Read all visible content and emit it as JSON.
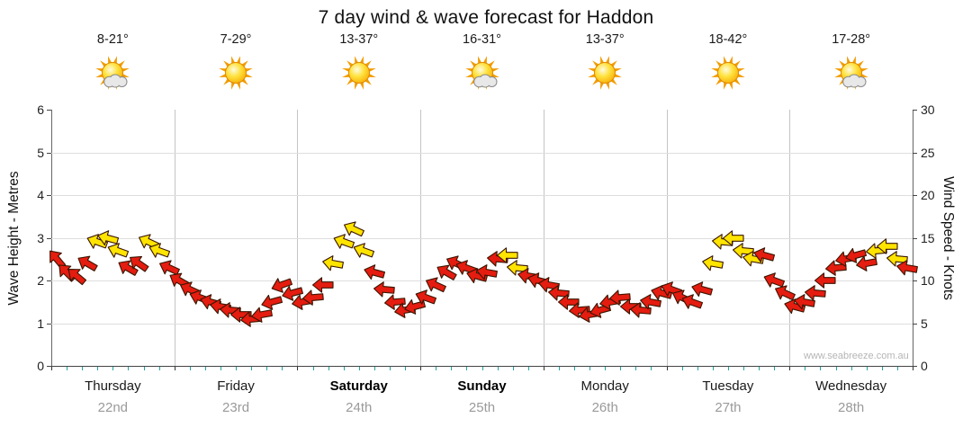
{
  "title": "7 day wind & wave forecast for Haddon",
  "watermark": "www.seabreeze.com.au",
  "axes": {
    "left_label": "Wave Height - Metres",
    "right_label": "Wind Speed - Knots",
    "wave_ticks": [
      0,
      1,
      2,
      3,
      4,
      5,
      6
    ],
    "wind_ticks": [
      0,
      5,
      10,
      15,
      20,
      25,
      30
    ],
    "wave_range": [
      0,
      6
    ],
    "wind_range": [
      0,
      30
    ]
  },
  "days": [
    {
      "name": "Thursday",
      "date": "22nd",
      "temp": "8-21°",
      "icon": "sun-cloud-icon",
      "weekend": false
    },
    {
      "name": "Friday",
      "date": "23rd",
      "temp": "7-29°",
      "icon": "sun-icon",
      "weekend": false
    },
    {
      "name": "Saturday",
      "date": "24th",
      "temp": "13-37°",
      "icon": "sun-icon",
      "weekend": true
    },
    {
      "name": "Sunday",
      "date": "25th",
      "temp": "16-31°",
      "icon": "sun-cloud-icon",
      "weekend": true
    },
    {
      "name": "Monday",
      "date": "26th",
      "temp": "13-37°",
      "icon": "sun-icon",
      "weekend": false
    },
    {
      "name": "Tuesday",
      "date": "27th",
      "temp": "18-42°",
      "icon": "sun-icon",
      "weekend": false
    },
    {
      "name": "Wednesday",
      "date": "28th",
      "temp": "17-28°",
      "icon": "sun-cloud-icon",
      "weekend": false
    }
  ],
  "chart_data": {
    "type": "scatter",
    "title": "7 day wind & wave forecast for Haddon",
    "ylabel_left": "Wave Height - Metres",
    "ylabel_right": "Wind Speed - Knots",
    "wind_ylim": [
      0,
      30
    ],
    "wave_ylim": [
      0,
      6
    ],
    "grid": true,
    "legend": null,
    "categories": [
      "Thursday 22nd",
      "Friday 23rd",
      "Saturday 24th",
      "Sunday 25th",
      "Monday 26th",
      "Tuesday 27th",
      "Wednesday 28th"
    ],
    "points_per_day": 12,
    "units": "knots",
    "color_map": {
      "r": "#e51c10",
      "y": "#ffe400"
    },
    "series": [
      {
        "name": "Wind speed arrows (direction-rotated glyphs)",
        "knots": [
          12.5,
          11,
          10.5,
          12,
          14.5,
          15,
          13.5,
          11.5,
          12,
          14.5,
          13.5,
          11.5,
          10,
          9,
          8,
          7.5,
          7,
          6.5,
          6,
          5.5,
          6,
          7.5,
          9.5,
          8.5,
          7.5,
          8,
          9.5,
          12,
          14.5,
          16,
          13.5,
          11,
          9,
          7.5,
          6.5,
          7,
          8,
          9.5,
          11,
          12,
          11.5,
          10.5,
          11,
          12.5,
          13,
          11.5,
          10.5,
          10,
          9.5,
          8.5,
          7.5,
          6.5,
          6,
          6.5,
          7.5,
          8,
          7,
          6.5,
          7.5,
          8.5,
          9,
          8,
          7.5,
          9,
          12,
          14.5,
          15,
          13.5,
          12.5,
          13,
          10,
          8.5,
          7,
          7.5,
          8.5,
          10,
          11.5,
          12.5,
          13,
          12,
          13.5,
          14,
          12.5,
          11.5
        ],
        "dir_deg": [
          230,
          225,
          220,
          210,
          200,
          195,
          200,
          210,
          215,
          205,
          200,
          205,
          210,
          205,
          200,
          195,
          190,
          185,
          180,
          175,
          170,
          165,
          160,
          165,
          170,
          175,
          180,
          190,
          200,
          205,
          200,
          195,
          185,
          175,
          170,
          165,
          200,
          205,
          210,
          205,
          200,
          195,
          190,
          185,
          180,
          185,
          190,
          195,
          190,
          185,
          180,
          175,
          170,
          165,
          170,
          175,
          180,
          185,
          190,
          195,
          200,
          205,
          200,
          195,
          190,
          185,
          180,
          185,
          190,
          195,
          200,
          205,
          195,
          190,
          185,
          180,
          175,
          170,
          165,
          170,
          175,
          180,
          185,
          190
        ],
        "colors": [
          "r",
          "r",
          "r",
          "r",
          "y",
          "y",
          "y",
          "r",
          "r",
          "y",
          "y",
          "r",
          "r",
          "r",
          "r",
          "r",
          "r",
          "r",
          "r",
          "r",
          "r",
          "r",
          "r",
          "r",
          "r",
          "r",
          "r",
          "y",
          "y",
          "y",
          "y",
          "r",
          "r",
          "r",
          "r",
          "r",
          "r",
          "r",
          "r",
          "r",
          "r",
          "r",
          "r",
          "r",
          "y",
          "y",
          "r",
          "r",
          "r",
          "r",
          "r",
          "r",
          "r",
          "r",
          "r",
          "r",
          "r",
          "r",
          "r",
          "r",
          "r",
          "r",
          "r",
          "r",
          "y",
          "y",
          "y",
          "y",
          "y",
          "r",
          "r",
          "r",
          "r",
          "r",
          "r",
          "r",
          "r",
          "r",
          "r",
          "r",
          "y",
          "y",
          "y",
          "r"
        ]
      }
    ]
  }
}
